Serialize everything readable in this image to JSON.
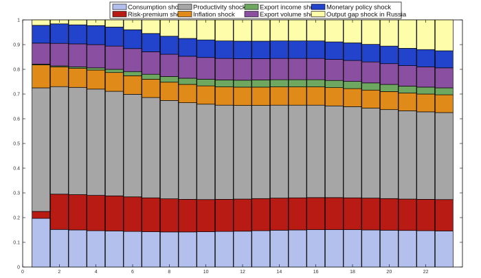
{
  "chart_data": {
    "type": "bar",
    "stacked": true,
    "x": [
      1,
      2,
      3,
      4,
      5,
      6,
      7,
      8,
      9,
      10,
      11,
      12,
      13,
      14,
      15,
      16,
      17,
      18,
      19,
      20,
      21,
      22,
      23
    ],
    "xlim": [
      0,
      24
    ],
    "ylim": [
      0,
      1
    ],
    "xticks": [
      "0",
      "2",
      "4",
      "6",
      "8",
      "10",
      "12",
      "14",
      "16",
      "18",
      "20",
      "22"
    ],
    "yticks": [
      "0",
      "0.1",
      "0.2",
      "0.3",
      "0.4",
      "0.5",
      "0.6",
      "0.7",
      "0.8",
      "0.9",
      "1"
    ],
    "legend_position": "top",
    "series": [
      {
        "name": "Consumption shock",
        "color": "#b3c0ee",
        "values": [
          0.197,
          0.152,
          0.15,
          0.147,
          0.146,
          0.144,
          0.143,
          0.142,
          0.142,
          0.143,
          0.144,
          0.145,
          0.147,
          0.149,
          0.15,
          0.151,
          0.151,
          0.151,
          0.15,
          0.149,
          0.148,
          0.147,
          0.146
        ]
      },
      {
        "name": "Risk-premium shock",
        "color": "#b81a14",
        "values": [
          0.028,
          0.143,
          0.143,
          0.143,
          0.142,
          0.14,
          0.137,
          0.134,
          0.132,
          0.13,
          0.13,
          0.13,
          0.13,
          0.13,
          0.13,
          0.13,
          0.13,
          0.129,
          0.129,
          0.128,
          0.127,
          0.127,
          0.127
        ]
      },
      {
        "name": "Productivity shock",
        "color": "#a6a6a6",
        "values": [
          0.5,
          0.435,
          0.434,
          0.43,
          0.423,
          0.415,
          0.406,
          0.398,
          0.391,
          0.386,
          0.381,
          0.379,
          0.377,
          0.376,
          0.375,
          0.374,
          0.371,
          0.369,
          0.364,
          0.36,
          0.357,
          0.354,
          0.352
        ]
      },
      {
        "name": "Inflation shock",
        "color": "#e08a1a",
        "values": [
          0.093,
          0.08,
          0.077,
          0.077,
          0.076,
          0.075,
          0.074,
          0.074,
          0.074,
          0.074,
          0.074,
          0.074,
          0.074,
          0.074,
          0.074,
          0.074,
          0.074,
          0.073,
          0.073,
          0.073,
          0.072,
          0.072,
          0.072
        ]
      },
      {
        "name": "Export income shock",
        "color": "#6ea860",
        "values": [
          0.003,
          0.004,
          0.006,
          0.009,
          0.013,
          0.017,
          0.02,
          0.023,
          0.025,
          0.027,
          0.028,
          0.028,
          0.029,
          0.029,
          0.029,
          0.029,
          0.029,
          0.029,
          0.029,
          0.029,
          0.028,
          0.028,
          0.028
        ]
      },
      {
        "name": "Export volume shock",
        "color": "#8a4fa0",
        "values": [
          0.085,
          0.091,
          0.093,
          0.094,
          0.094,
          0.093,
          0.091,
          0.09,
          0.089,
          0.088,
          0.087,
          0.087,
          0.086,
          0.086,
          0.086,
          0.086,
          0.085,
          0.085,
          0.085,
          0.084,
          0.083,
          0.082,
          0.081
        ]
      },
      {
        "name": "Monetary policy shock",
        "color": "#2244cc",
        "values": [
          0.072,
          0.079,
          0.077,
          0.077,
          0.077,
          0.076,
          0.074,
          0.073,
          0.072,
          0.071,
          0.071,
          0.071,
          0.071,
          0.071,
          0.071,
          0.071,
          0.071,
          0.071,
          0.071,
          0.071,
          0.07,
          0.07,
          0.069
        ]
      },
      {
        "name": "Output gap shock in Russia",
        "color": "#fdfdaa",
        "values": [
          0.022,
          0.016,
          0.02,
          0.023,
          0.029,
          0.04,
          0.055,
          0.066,
          0.075,
          0.081,
          0.085,
          0.086,
          0.086,
          0.085,
          0.085,
          0.085,
          0.089,
          0.093,
          0.099,
          0.106,
          0.115,
          0.12,
          0.125
        ]
      }
    ]
  }
}
